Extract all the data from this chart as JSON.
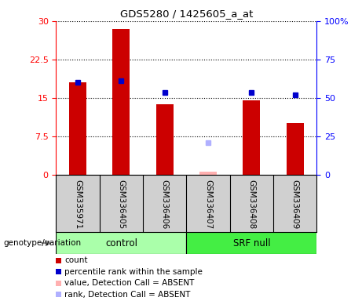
{
  "title": "GDS5280 / 1425605_a_at",
  "samples": [
    "GSM335971",
    "GSM336405",
    "GSM336406",
    "GSM336407",
    "GSM336408",
    "GSM336409"
  ],
  "count_values": [
    18.0,
    28.5,
    13.8,
    null,
    14.5,
    10.0
  ],
  "rank_values": [
    60.0,
    61.0,
    53.5,
    null,
    53.5,
    52.0
  ],
  "absent_count_values": [
    null,
    null,
    null,
    0.5,
    null,
    null
  ],
  "absent_rank_values": [
    null,
    null,
    null,
    21.0,
    null,
    null
  ],
  "ylim_left": [
    0,
    30
  ],
  "ylim_right": [
    0,
    100
  ],
  "yticks_left": [
    0,
    7.5,
    15,
    22.5,
    30
  ],
  "yticks_right": [
    0,
    25,
    50,
    75,
    100
  ],
  "bar_color": "#cc0000",
  "rank_color": "#0000cc",
  "absent_bar_color": "#ffb0b0",
  "absent_rank_color": "#b0b0ff",
  "bar_width": 0.4,
  "control_color": "#aaffaa",
  "srfnull_color": "#44ee44",
  "label_bg_color": "#d0d0d0",
  "plot_bg_color": "#ffffff",
  "legend_items": [
    {
      "label": "count",
      "color": "#cc0000"
    },
    {
      "label": "percentile rank within the sample",
      "color": "#0000cc"
    },
    {
      "label": "value, Detection Call = ABSENT",
      "color": "#ffb0b0"
    },
    {
      "label": "rank, Detection Call = ABSENT",
      "color": "#b0b0ff"
    }
  ]
}
